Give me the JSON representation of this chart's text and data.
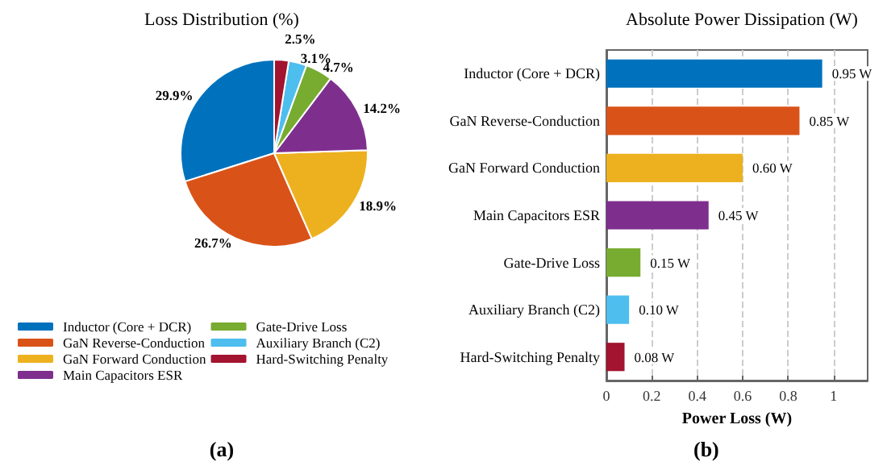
{
  "chart_data": [
    {
      "type": "pie",
      "title": "Loss Distribution (%)",
      "categories": [
        "Inductor (Core + DCR)",
        "GaN Reverse-Conduction",
        "GaN Forward Conduction",
        "Main Capacitors ESR",
        "Gate-Drive Loss",
        "Auxiliary Branch (C2)",
        "Hard-Switching Penalty"
      ],
      "values": [
        29.9,
        26.7,
        18.9,
        14.2,
        4.7,
        3.1,
        2.5
      ],
      "value_labels": [
        "29.9%",
        "26.7%",
        "18.9%",
        "14.2%",
        "4.7%",
        "3.1%",
        "2.5%"
      ],
      "colors": [
        "#0072bd",
        "#d95319",
        "#edb120",
        "#7e2f8e",
        "#77ac30",
        "#4dbeee",
        "#a2142f"
      ],
      "legend": "bottom",
      "annotations": [
        "(a)"
      ]
    },
    {
      "type": "bar",
      "orientation": "horizontal",
      "title": "Absolute Power Dissipation (W)",
      "xlabel": "Power Loss (W)",
      "categories": [
        "Inductor (Core + DCR)",
        "GaN Reverse-Conduction",
        "GaN Forward Conduction",
        "Main Capacitors ESR",
        "Gate-Drive Loss",
        "Auxiliary Branch (C2)",
        "Hard-Switching Penalty"
      ],
      "values": [
        0.95,
        0.85,
        0.6,
        0.45,
        0.15,
        0.1,
        0.08
      ],
      "value_labels": [
        "0.95 W",
        "0.85 W",
        "0.60 W",
        "0.45 W",
        "0.15 W",
        "0.10 W",
        "0.08 W"
      ],
      "colors": [
        "#0072bd",
        "#d95319",
        "#edb120",
        "#7e2f8e",
        "#77ac30",
        "#4dbeee",
        "#a2142f"
      ],
      "xlim": [
        0,
        1.15
      ],
      "xticks": [
        0,
        0.2,
        0.4,
        0.6,
        0.8,
        1
      ],
      "grid": "x",
      "legend": false,
      "annotations": [
        "(b)"
      ]
    }
  ]
}
